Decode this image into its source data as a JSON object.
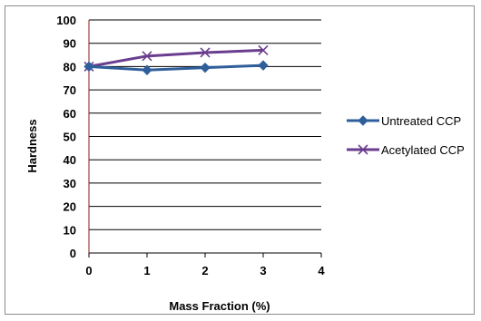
{
  "chart_data": {
    "type": "line",
    "xlabel": "Mass Fraction (%)",
    "ylabel": "Hardness",
    "x_ticks": [
      0,
      1,
      2,
      3,
      4
    ],
    "y_ticks": [
      0,
      10,
      20,
      30,
      40,
      50,
      60,
      70,
      80,
      90,
      100
    ],
    "xlim": [
      0,
      4
    ],
    "ylim": [
      0,
      100
    ],
    "grid": "horizontal",
    "legend_position": "right",
    "series": [
      {
        "name": "Untreated CCP",
        "x": [
          0,
          1,
          2,
          3
        ],
        "values": [
          80,
          78.5,
          79.5,
          80.5
        ],
        "color": "#2f5f9b",
        "marker": "diamond"
      },
      {
        "name": "Acetylated CCP",
        "x": [
          0,
          1,
          2,
          3
        ],
        "values": [
          80,
          84.5,
          86,
          87
        ],
        "color": "#6a3d8f",
        "marker": "x"
      }
    ]
  }
}
